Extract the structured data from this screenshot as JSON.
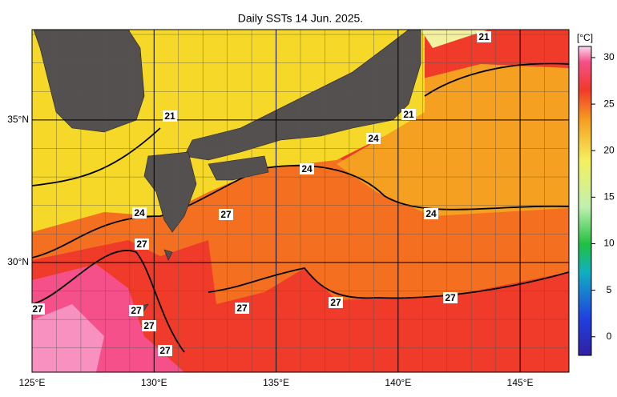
{
  "map": {
    "title": "Daily SSTs 14 Jun. 2025.",
    "xlim": [
      125,
      147
    ],
    "ylim": [
      26.15,
      38.17
    ],
    "xticks": [
      {
        "value": 125,
        "label": "125°E"
      },
      {
        "value": 130,
        "label": "130°E"
      },
      {
        "value": 135,
        "label": "135°E"
      },
      {
        "value": 140,
        "label": "140°E"
      },
      {
        "value": 145,
        "label": "145°E"
      }
    ],
    "yticks": [
      {
        "value": 30,
        "label": "30°N"
      },
      {
        "value": 35,
        "label": "35°N"
      }
    ],
    "colorbar": {
      "unit": "[°C]",
      "lim": [
        -2,
        31.2
      ],
      "ticks": [
        0,
        5,
        10,
        15,
        20,
        25,
        30
      ]
    },
    "contour_labels": [
      "21",
      "21",
      "21",
      "24",
      "24",
      "24",
      "24",
      "27",
      "27",
      "27",
      "27",
      "27",
      "27",
      "27",
      "27",
      "27"
    ]
  }
}
